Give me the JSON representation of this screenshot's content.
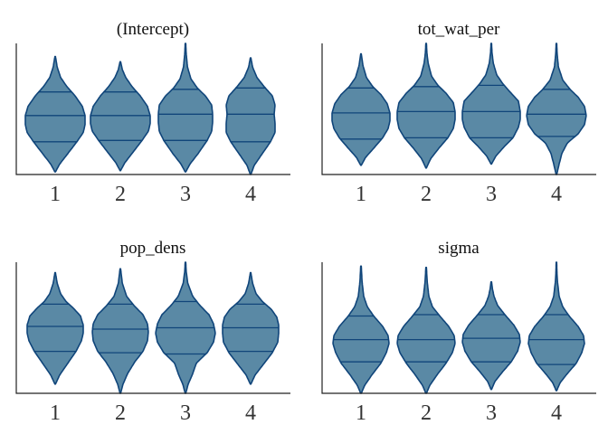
{
  "colors": {
    "fill": "#5a89a5",
    "outline": "#10457a",
    "axis": "#222222"
  },
  "chart_data": [
    {
      "type": "violin",
      "title": "(Intercept)",
      "categories": [
        "1",
        "2",
        "3",
        "4"
      ],
      "ylim": [
        0,
        1
      ],
      "series": [
        {
          "category": "1",
          "min": 0.02,
          "max": 0.9,
          "quantiles": [
            0.25,
            0.45,
            0.63
          ],
          "profile": [
            [
              0.02,
              0.3
            ],
            [
              0.08,
              5
            ],
            [
              0.16,
              14
            ],
            [
              0.25,
              24
            ],
            [
              0.32,
              31
            ],
            [
              0.38,
              33
            ],
            [
              0.45,
              33
            ],
            [
              0.52,
              30
            ],
            [
              0.6,
              22
            ],
            [
              0.67,
              13
            ],
            [
              0.74,
              6
            ],
            [
              0.82,
              2.2
            ],
            [
              0.9,
              0.3
            ]
          ]
        },
        {
          "category": "2",
          "min": 0.03,
          "max": 0.86,
          "quantiles": [
            0.26,
            0.45,
            0.63
          ],
          "profile": [
            [
              0.03,
              0.3
            ],
            [
              0.09,
              5
            ],
            [
              0.17,
              14
            ],
            [
              0.26,
              24
            ],
            [
              0.33,
              31
            ],
            [
              0.39,
              33
            ],
            [
              0.45,
              33
            ],
            [
              0.52,
              30
            ],
            [
              0.6,
              22
            ],
            [
              0.67,
              13
            ],
            [
              0.74,
              6
            ],
            [
              0.8,
              2.2
            ],
            [
              0.86,
              0.3
            ]
          ]
        },
        {
          "category": "3",
          "min": 0.02,
          "max": 1.0,
          "quantiles": [
            0.26,
            0.46,
            0.65
          ],
          "profile": [
            [
              0.02,
              0.3
            ],
            [
              0.08,
              5
            ],
            [
              0.16,
              14
            ],
            [
              0.26,
              24
            ],
            [
              0.33,
              29
            ],
            [
              0.4,
              30
            ],
            [
              0.46,
              30
            ],
            [
              0.53,
              29
            ],
            [
              0.6,
              22
            ],
            [
              0.66,
              13
            ],
            [
              0.73,
              6
            ],
            [
              0.82,
              2.2
            ],
            [
              0.92,
              0.8
            ],
            [
              1.0,
              0.3
            ]
          ]
        },
        {
          "category": "4",
          "min": 0.0,
          "max": 0.89,
          "quantiles": [
            0.25,
            0.46,
            0.66
          ],
          "profile": [
            [
              0.0,
              0.3
            ],
            [
              0.07,
              4
            ],
            [
              0.15,
              12
            ],
            [
              0.25,
              22
            ],
            [
              0.32,
              27
            ],
            [
              0.39,
              27
            ],
            [
              0.46,
              26
            ],
            [
              0.53,
              27
            ],
            [
              0.6,
              24
            ],
            [
              0.67,
              15
            ],
            [
              0.74,
              7
            ],
            [
              0.82,
              2.2
            ],
            [
              0.89,
              0.3
            ]
          ]
        }
      ]
    },
    {
      "type": "violin",
      "title": "tot_wat_per",
      "categories": [
        "1",
        "2",
        "3",
        "4"
      ],
      "ylim": [
        0,
        1
      ],
      "series": [
        {
          "category": "1",
          "min": 0.07,
          "max": 0.92,
          "quantiles": [
            0.27,
            0.47,
            0.66
          ],
          "profile": [
            [
              0.07,
              0.3
            ],
            [
              0.13,
              5
            ],
            [
              0.2,
              14
            ],
            [
              0.28,
              24
            ],
            [
              0.35,
              30
            ],
            [
              0.41,
              32
            ],
            [
              0.47,
              32
            ],
            [
              0.54,
              29
            ],
            [
              0.61,
              22
            ],
            [
              0.67,
              13
            ],
            [
              0.74,
              6
            ],
            [
              0.83,
              2.2
            ],
            [
              0.92,
              0.3
            ]
          ]
        },
        {
          "category": "2",
          "min": 0.05,
          "max": 1.0,
          "quantiles": [
            0.28,
            0.48,
            0.67
          ],
          "profile": [
            [
              0.05,
              0.3
            ],
            [
              0.12,
              5
            ],
            [
              0.2,
              14
            ],
            [
              0.28,
              24
            ],
            [
              0.35,
              30
            ],
            [
              0.42,
              32
            ],
            [
              0.48,
              32
            ],
            [
              0.55,
              30
            ],
            [
              0.62,
              22
            ],
            [
              0.68,
              13
            ],
            [
              0.75,
              6
            ],
            [
              0.85,
              2.2
            ],
            [
              0.93,
              0.8
            ],
            [
              1.0,
              0.3
            ]
          ]
        },
        {
          "category": "3",
          "min": 0.08,
          "max": 1.0,
          "quantiles": [
            0.28,
            0.48,
            0.68
          ],
          "profile": [
            [
              0.08,
              0.3
            ],
            [
              0.14,
              5
            ],
            [
              0.21,
              14
            ],
            [
              0.28,
              24
            ],
            [
              0.36,
              30
            ],
            [
              0.42,
              32
            ],
            [
              0.48,
              32
            ],
            [
              0.56,
              30
            ],
            [
              0.62,
              22
            ],
            [
              0.69,
              13
            ],
            [
              0.76,
              6
            ],
            [
              0.85,
              2.2
            ],
            [
              0.93,
              0.8
            ],
            [
              1.0,
              0.3
            ]
          ]
        },
        {
          "category": "4",
          "min": 0.0,
          "max": 1.0,
          "quantiles": [
            0.29,
            0.46,
            0.65
          ],
          "profile": [
            [
              0.0,
              0.3
            ],
            [
              0.08,
              3
            ],
            [
              0.16,
              6
            ],
            [
              0.24,
              12
            ],
            [
              0.31,
              24
            ],
            [
              0.38,
              31
            ],
            [
              0.45,
              33
            ],
            [
              0.52,
              31
            ],
            [
              0.59,
              24
            ],
            [
              0.65,
              15
            ],
            [
              0.72,
              7
            ],
            [
              0.82,
              2.2
            ],
            [
              0.92,
              0.8
            ],
            [
              1.0,
              0.3
            ]
          ]
        }
      ]
    },
    {
      "type": "violin",
      "title": "pop_dens",
      "categories": [
        "1",
        "2",
        "3",
        "4"
      ],
      "ylim": [
        0,
        1
      ],
      "series": [
        {
          "category": "1",
          "min": 0.07,
          "max": 0.92,
          "quantiles": [
            0.32,
            0.51,
            0.68
          ],
          "profile": [
            [
              0.07,
              0.3
            ],
            [
              0.14,
              5
            ],
            [
              0.22,
              13
            ],
            [
              0.32,
              23
            ],
            [
              0.4,
              29
            ],
            [
              0.46,
              31
            ],
            [
              0.52,
              31
            ],
            [
              0.59,
              28
            ],
            [
              0.65,
              20
            ],
            [
              0.7,
              12
            ],
            [
              0.76,
              6
            ],
            [
              0.84,
              2.2
            ],
            [
              0.92,
              0.3
            ]
          ]
        },
        {
          "category": "2",
          "min": 0.0,
          "max": 0.95,
          "quantiles": [
            0.31,
            0.49,
            0.68
          ],
          "profile": [
            [
              0.0,
              0.3
            ],
            [
              0.07,
              3
            ],
            [
              0.15,
              8
            ],
            [
              0.24,
              16
            ],
            [
              0.32,
              25
            ],
            [
              0.4,
              30
            ],
            [
              0.47,
              31
            ],
            [
              0.53,
              30
            ],
            [
              0.6,
              25
            ],
            [
              0.67,
              15
            ],
            [
              0.74,
              7
            ],
            [
              0.84,
              2.2
            ],
            [
              0.95,
              0.3
            ]
          ]
        },
        {
          "category": "3",
          "min": 0.0,
          "max": 1.0,
          "quantiles": [
            0.3,
            0.5,
            0.7
          ],
          "profile": [
            [
              0.0,
              0.3
            ],
            [
              0.07,
              3
            ],
            [
              0.15,
              8
            ],
            [
              0.23,
              12
            ],
            [
              0.31,
              24
            ],
            [
              0.39,
              31
            ],
            [
              0.46,
              33
            ],
            [
              0.53,
              31
            ],
            [
              0.6,
              26
            ],
            [
              0.67,
              16
            ],
            [
              0.74,
              8
            ],
            [
              0.84,
              2.5
            ],
            [
              0.93,
              0.8
            ],
            [
              1.0,
              0.3
            ]
          ]
        },
        {
          "category": "4",
          "min": 0.07,
          "max": 0.92,
          "quantiles": [
            0.32,
            0.5,
            0.68
          ],
          "profile": [
            [
              0.07,
              0.3
            ],
            [
              0.14,
              5
            ],
            [
              0.22,
              14
            ],
            [
              0.31,
              24
            ],
            [
              0.39,
              30
            ],
            [
              0.46,
              31
            ],
            [
              0.52,
              31
            ],
            [
              0.58,
              29
            ],
            [
              0.64,
              23
            ],
            [
              0.7,
              13
            ],
            [
              0.76,
              6
            ],
            [
              0.84,
              2.2
            ],
            [
              0.92,
              0.3
            ]
          ]
        }
      ]
    },
    {
      "type": "violin",
      "title": "sigma",
      "categories": [
        "1",
        "2",
        "3",
        "4"
      ],
      "ylim": [
        0,
        1
      ],
      "series": [
        {
          "category": "1",
          "min": 0.0,
          "max": 0.97,
          "quantiles": [
            0.24,
            0.41,
            0.59
          ],
          "profile": [
            [
              0.0,
              0.3
            ],
            [
              0.06,
              4
            ],
            [
              0.14,
              12
            ],
            [
              0.23,
              22
            ],
            [
              0.31,
              28
            ],
            [
              0.38,
              31
            ],
            [
              0.44,
              30
            ],
            [
              0.51,
              24
            ],
            [
              0.59,
              14
            ],
            [
              0.66,
              7
            ],
            [
              0.74,
              3
            ],
            [
              0.85,
              1.2
            ],
            [
              0.97,
              0.3
            ]
          ]
        },
        {
          "category": "2",
          "min": 0.0,
          "max": 0.96,
          "quantiles": [
            0.24,
            0.41,
            0.6
          ],
          "profile": [
            [
              0.0,
              0.3
            ],
            [
              0.06,
              4
            ],
            [
              0.14,
              12
            ],
            [
              0.23,
              22
            ],
            [
              0.31,
              29
            ],
            [
              0.38,
              32
            ],
            [
              0.44,
              31
            ],
            [
              0.51,
              25
            ],
            [
              0.59,
              15
            ],
            [
              0.66,
              7
            ],
            [
              0.74,
              3
            ],
            [
              0.85,
              1.2
            ],
            [
              0.96,
              0.3
            ]
          ]
        },
        {
          "category": "3",
          "min": 0.03,
          "max": 0.85,
          "quantiles": [
            0.24,
            0.42,
            0.6
          ],
          "profile": [
            [
              0.03,
              0.3
            ],
            [
              0.09,
              4
            ],
            [
              0.16,
              12
            ],
            [
              0.24,
              22
            ],
            [
              0.32,
              29
            ],
            [
              0.39,
              32
            ],
            [
              0.45,
              31
            ],
            [
              0.52,
              25
            ],
            [
              0.6,
              15
            ],
            [
              0.67,
              7
            ],
            [
              0.74,
              3
            ],
            [
              0.8,
              1.2
            ],
            [
              0.85,
              0.3
            ]
          ]
        },
        {
          "category": "4",
          "min": 0.02,
          "max": 1.0,
          "quantiles": [
            0.22,
            0.41,
            0.6
          ],
          "profile": [
            [
              0.02,
              0.3
            ],
            [
              0.08,
              4
            ],
            [
              0.15,
              12
            ],
            [
              0.23,
              22
            ],
            [
              0.31,
              28
            ],
            [
              0.38,
              31
            ],
            [
              0.44,
              30
            ],
            [
              0.51,
              24
            ],
            [
              0.59,
              14
            ],
            [
              0.66,
              7
            ],
            [
              0.74,
              3
            ],
            [
              0.85,
              1.2
            ],
            [
              0.93,
              0.5
            ],
            [
              1.0,
              0.3
            ]
          ]
        }
      ]
    }
  ]
}
